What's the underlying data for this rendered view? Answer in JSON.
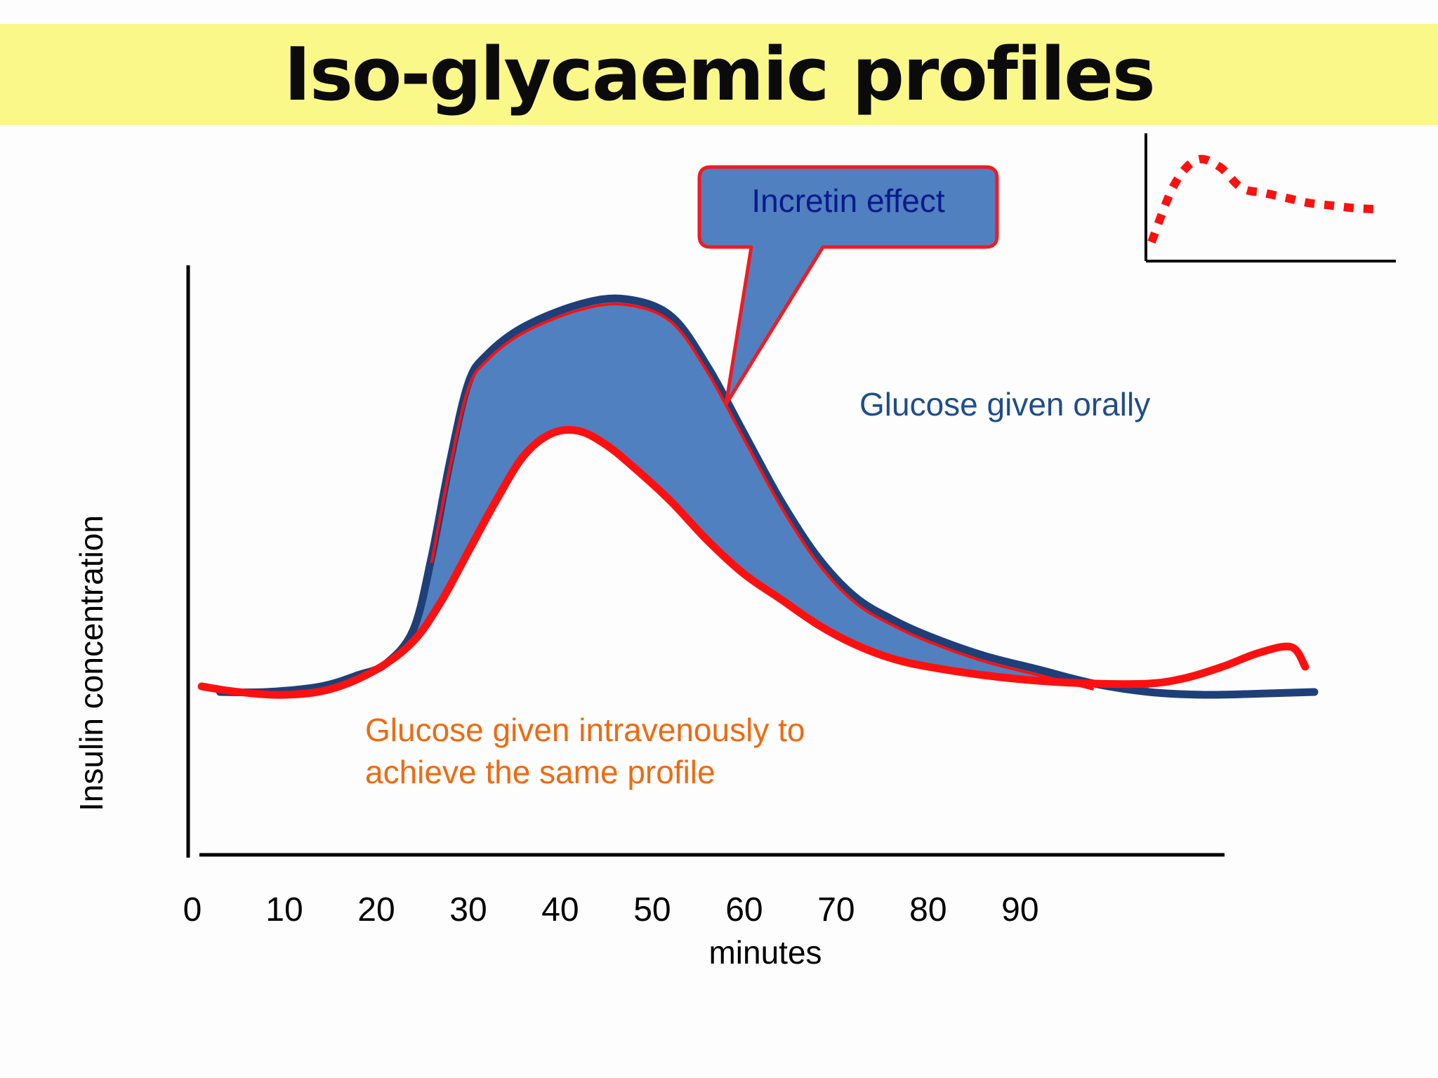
{
  "title": "Iso-glycaemic profiles",
  "chart_data": {
    "type": "line",
    "title": "Iso-glycaemic profiles",
    "xlabel": "minutes",
    "ylabel": "Insulin concentration",
    "x_ticks": [
      0,
      10,
      20,
      30,
      40,
      50,
      60,
      70,
      80,
      90
    ],
    "xlim": [
      0,
      122
    ],
    "ylim": [
      0,
      10
    ],
    "grid": false,
    "series": [
      {
        "name": "Glucose given orally",
        "color": "#1f3f78",
        "x": [
          3,
          8,
          14,
          18,
          21,
          24,
          26,
          28,
          30,
          32,
          36,
          42,
          47,
          52,
          56,
          60,
          64,
          68,
          72,
          76,
          80,
          86,
          92,
          98,
          104,
          110,
          116,
          122
        ],
        "y": [
          2.9,
          2.9,
          3.0,
          3.2,
          3.4,
          4.0,
          5.3,
          7.0,
          8.4,
          8.9,
          9.4,
          9.8,
          9.9,
          9.6,
          8.7,
          7.5,
          6.3,
          5.3,
          4.6,
          4.2,
          3.9,
          3.55,
          3.3,
          3.05,
          2.9,
          2.85,
          2.87,
          2.9
        ],
        "label_text": "Glucose given orally",
        "label_color": "#1f4d8a"
      },
      {
        "name": "Glucose given intravenously to achieve the same profile",
        "color": "#ff1010",
        "x": [
          1,
          5,
          10,
          15,
          20,
          24,
          27,
          30,
          33,
          36,
          39,
          42,
          45,
          48,
          52,
          56,
          60,
          64,
          68,
          72,
          76,
          80,
          86,
          92,
          98,
          104,
          108,
          112,
          116,
          119.5,
          121
        ],
        "y": [
          3.0,
          2.9,
          2.85,
          2.95,
          3.3,
          3.8,
          4.5,
          5.4,
          6.3,
          7.1,
          7.5,
          7.55,
          7.3,
          6.9,
          6.3,
          5.6,
          5.0,
          4.55,
          4.1,
          3.75,
          3.5,
          3.35,
          3.2,
          3.1,
          3.05,
          3.05,
          3.15,
          3.35,
          3.6,
          3.7,
          3.35
        ],
        "label_text": [
          "Glucose given intravenously to",
          "achieve the same profile"
        ],
        "label_color": "#ee6a12"
      }
    ],
    "annotation": {
      "text": "Incretin effect",
      "text_color": "#0a1a8c",
      "fill": "#5080c0",
      "stroke": "#ee1c24",
      "points_to_x": 59.5,
      "points_to_y": 8.0
    },
    "inset": {
      "type": "line",
      "style": "dotted",
      "color": "#ff1010",
      "x": [
        0,
        1,
        2,
        3,
        4,
        5,
        6,
        7,
        8,
        9,
        10
      ],
      "y": [
        1.5,
        6.0,
        8.0,
        7.5,
        5.8,
        5.4,
        5.0,
        4.6,
        4.4,
        4.2,
        4.1
      ]
    }
  }
}
